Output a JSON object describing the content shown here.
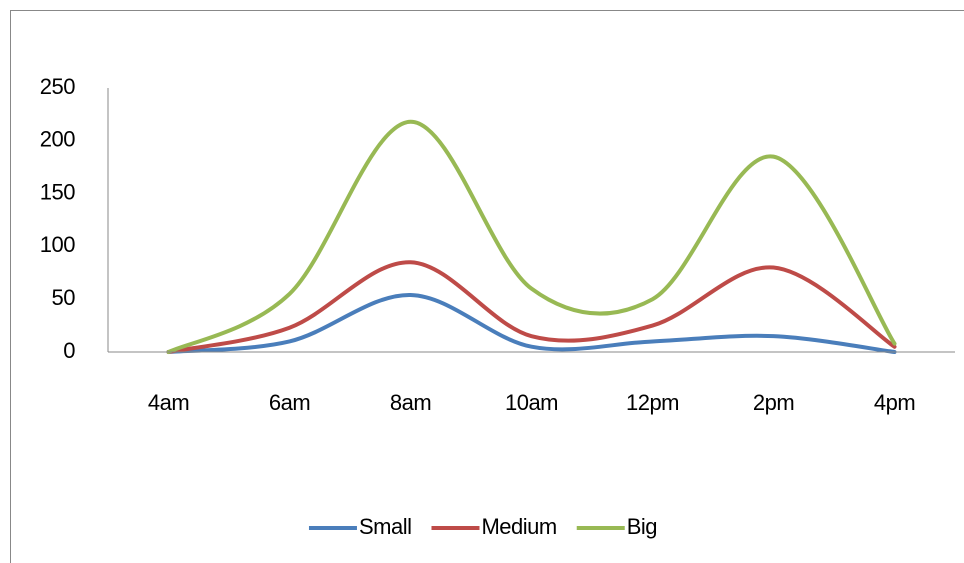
{
  "chart_data": {
    "type": "line",
    "smooth": true,
    "grid": false,
    "legend": "bottom",
    "categories": [
      "4am",
      "6am",
      "8am",
      "10am",
      "12pm",
      "2pm",
      "4pm"
    ],
    "series": [
      {
        "name": "Small",
        "color": "#4a7ebb",
        "values": [
          0,
          10,
          54,
          5,
          10,
          15,
          0
        ]
      },
      {
        "name": "Medium",
        "color": "#be4b48",
        "values": [
          0,
          23,
          85,
          15,
          25,
          80,
          5
        ]
      },
      {
        "name": "Big",
        "color": "#98b954",
        "values": [
          0,
          55,
          218,
          60,
          50,
          185,
          8
        ]
      }
    ],
    "ylim": [
      0,
      250
    ],
    "yticks": [
      0,
      50,
      100,
      150,
      200,
      250
    ]
  }
}
